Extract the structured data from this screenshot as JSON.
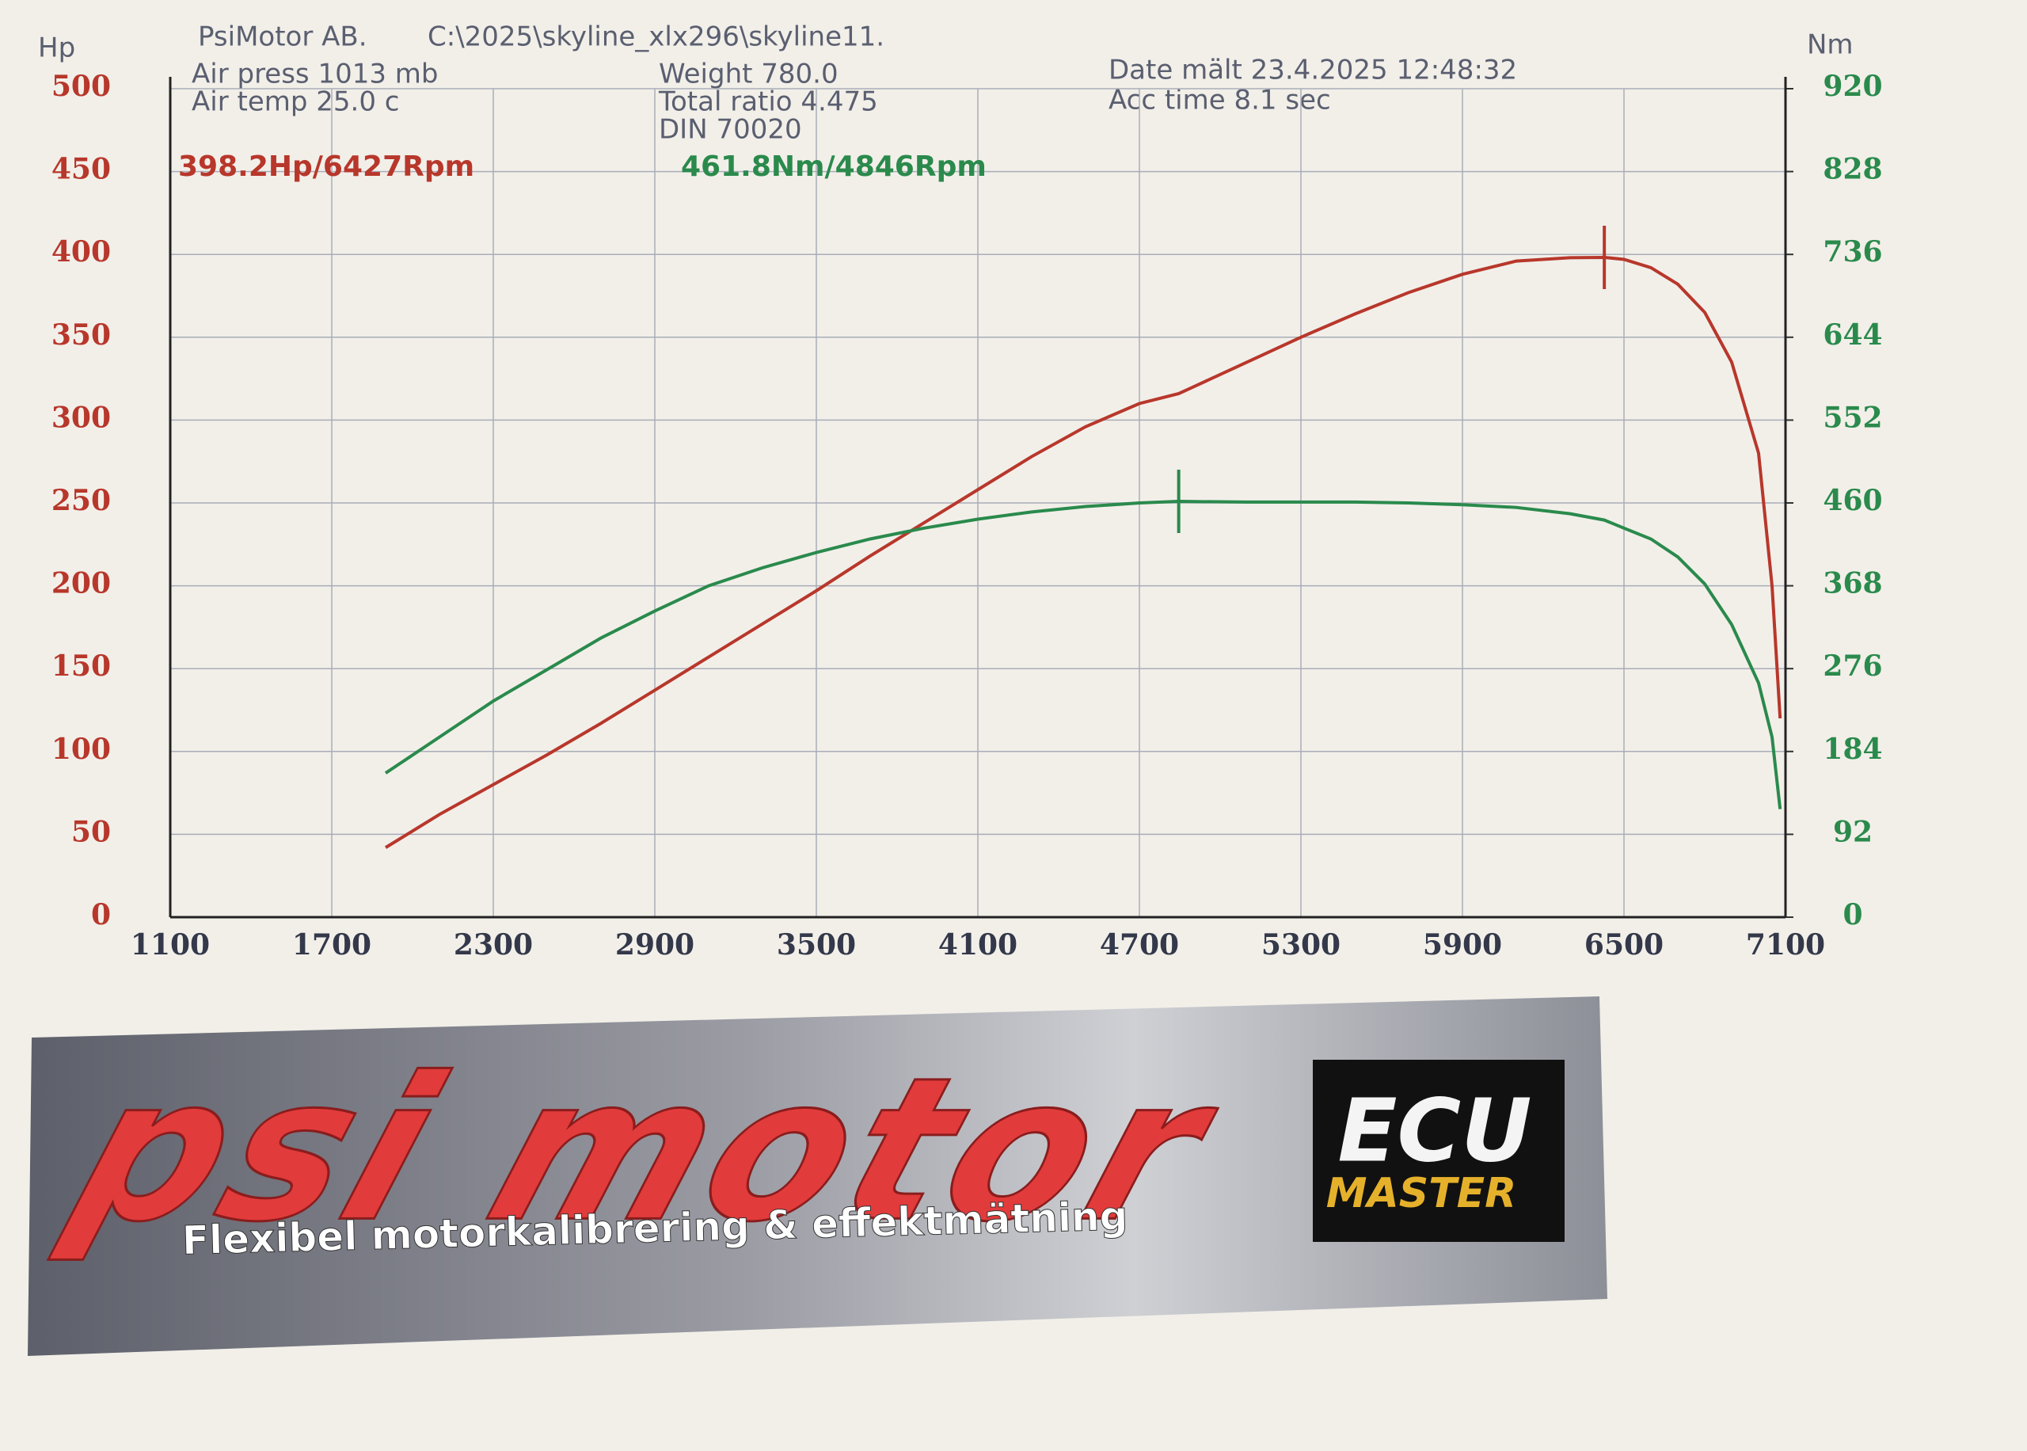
{
  "header": {
    "company": "PsiMotor AB.",
    "file": "C:\\2025\\skyline_xlx296\\skyline11.",
    "air_press": "Air press  1013 mb",
    "air_temp": "Air temp  25.0 c",
    "weight": "Weight  780.0",
    "total_ratio": "Total ratio 4.475",
    "din": "DIN 70020",
    "date": "Date mält 23.4.2025 12:48:32",
    "acc_time": "Acc time  8.1 sec"
  },
  "chart_data": {
    "type": "line",
    "ylabel": "Hp",
    "y2label": "Nm",
    "x": [
      1900,
      2100,
      2300,
      2500,
      2700,
      2900,
      3100,
      3300,
      3500,
      3700,
      3900,
      4100,
      4300,
      4500,
      4700,
      4846,
      4900,
      5100,
      5300,
      5500,
      5700,
      5900,
      6100,
      6300,
      6427,
      6500,
      6600,
      6700,
      6800,
      6900,
      7000,
      7050,
      7080
    ],
    "series": [
      {
        "color": "#b8372b",
        "values": [
          42,
          62,
          80,
          98,
          117,
          137,
          157,
          177,
          197,
          218,
          238,
          258,
          278,
          296,
          310,
          316,
          320,
          335,
          350,
          364,
          377,
          388,
          396,
          398,
          398.2,
          397,
          392,
          382,
          365,
          335,
          280,
          200,
          120
        ]
      },
      {
        "color": "#2a8a4c",
        "axis": "y2",
        "values": [
          160,
          200,
          240,
          275,
          310,
          340,
          368,
          388,
          405,
          420,
          432,
          442,
          450,
          456,
          460,
          461.8,
          461.5,
          461,
          461,
          461,
          460,
          458,
          455,
          448,
          441,
          432,
          420,
          400,
          370,
          325,
          260,
          200,
          120
        ]
      }
    ],
    "annotations": [
      {
        "text": "398.2Hp/6427Rpm",
        "x": 6427,
        "y": 398.2,
        "color": "#b8372b"
      },
      {
        "text": "461.8Nm/4846Rpm",
        "x": 4846,
        "y": 461.8,
        "color": "#2a8a4c",
        "axis": "y2"
      }
    ],
    "xlim": [
      1100,
      7100
    ],
    "xticks": [
      1100,
      1700,
      2300,
      2900,
      3500,
      4100,
      4700,
      5300,
      5900,
      6500,
      7100
    ],
    "ylim": [
      0,
      500
    ],
    "yticks": [
      0,
      50,
      100,
      150,
      200,
      250,
      300,
      350,
      400,
      450,
      500
    ],
    "y2lim": [
      0,
      920
    ],
    "y2ticks": [
      0,
      92,
      184,
      276,
      368,
      460,
      552,
      644,
      736,
      828,
      920
    ],
    "grid": true
  },
  "banner": {
    "logo": "psi motor",
    "tagline": "Flexibel motorkalibrering & effektmätning",
    "ecu": "ECU",
    "master": "MASTER"
  }
}
